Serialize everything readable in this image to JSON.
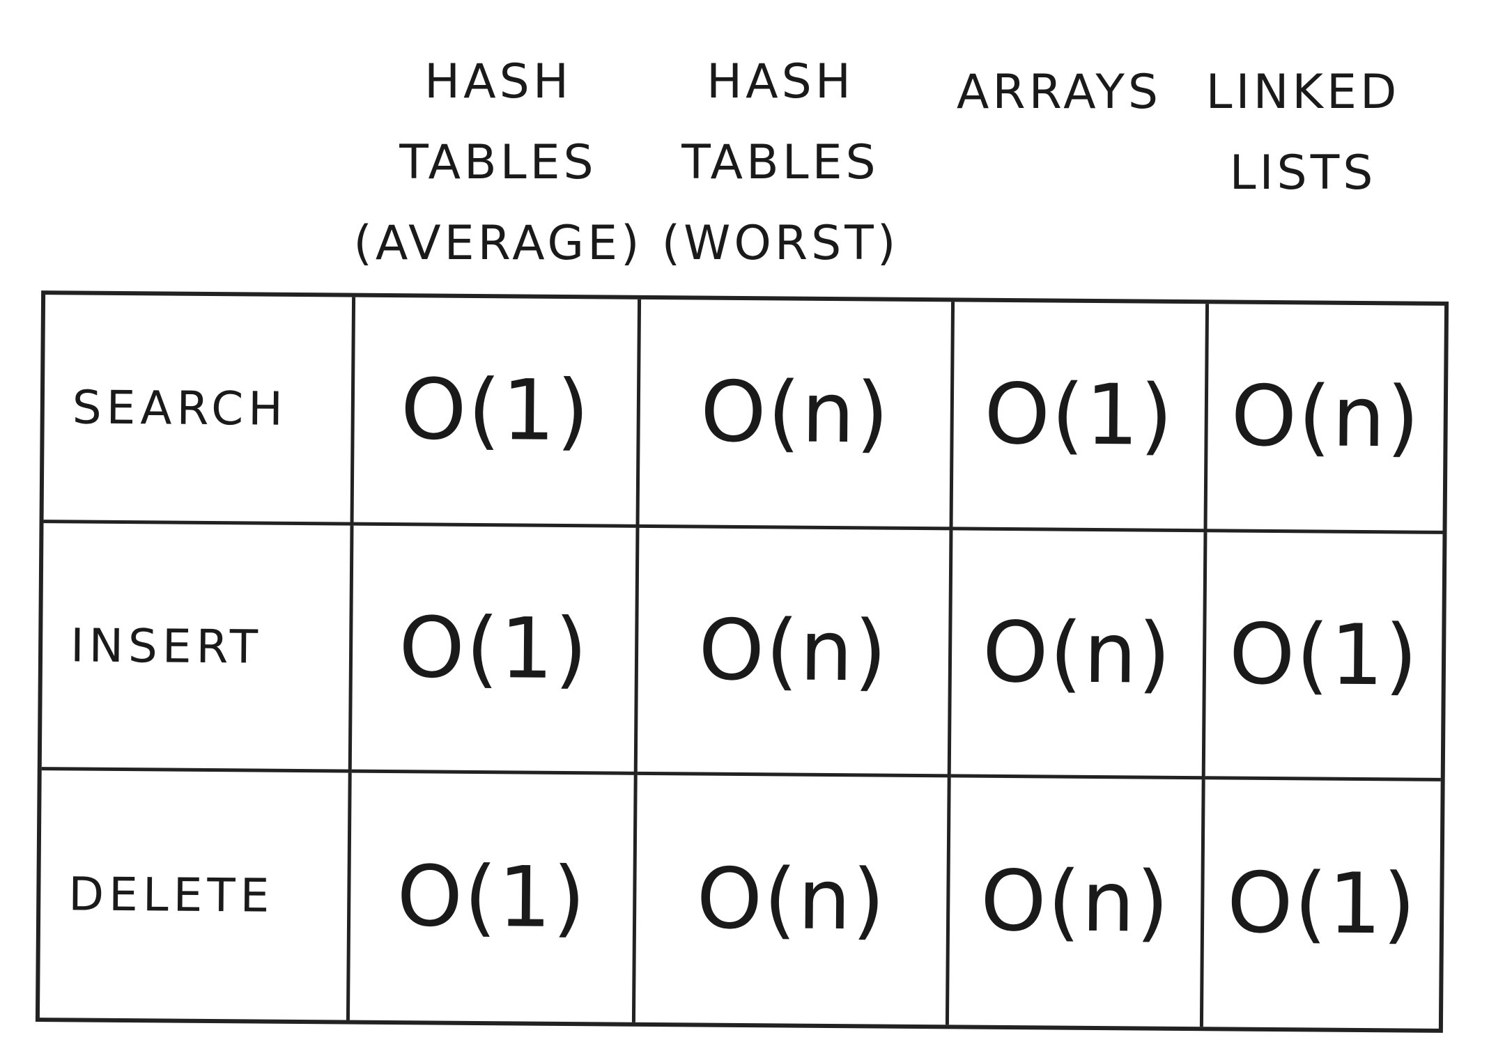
{
  "columns": [
    {
      "line1": "HASH",
      "line2": "TABLES",
      "line3": "(AVERAGE)"
    },
    {
      "line1": "HASH",
      "line2": "TABLES",
      "line3": "(WORST)"
    },
    {
      "line1": "",
      "line2": "",
      "line3": "ARRAYS"
    },
    {
      "line1": "",
      "line2": "LINKED",
      "line3": "LISTS"
    }
  ],
  "rows": [
    {
      "label": "SEARCH",
      "values": [
        "O(1)",
        "O(n)",
        "O(1)",
        "O(n)"
      ]
    },
    {
      "label": "INSERT",
      "values": [
        "O(1)",
        "O(n)",
        "O(n)",
        "O(1)"
      ]
    },
    {
      "label": "DELETE",
      "values": [
        "O(1)",
        "O(n)",
        "O(n)",
        "O(1)"
      ]
    }
  ]
}
